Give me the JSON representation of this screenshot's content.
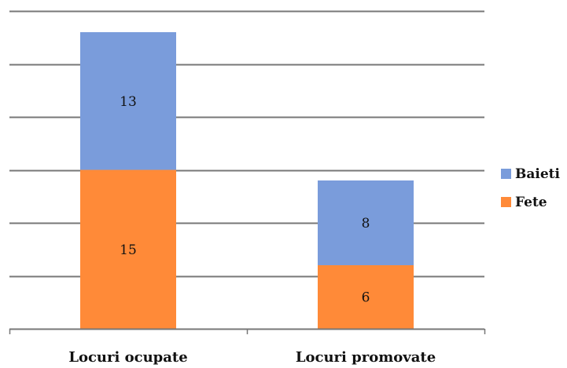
{
  "colors": {
    "baieti": "#7A9CDB",
    "fete": "#FF8A38",
    "grid": "#777777",
    "axis": "#777777"
  },
  "chart_data": {
    "type": "bar",
    "stacked": true,
    "categories": [
      "Locuri ocupate",
      "Locuri promovate"
    ],
    "series": [
      {
        "name": "Fete",
        "values": [
          15,
          6
        ]
      },
      {
        "name": "Baieti",
        "values": [
          13,
          8
        ]
      }
    ],
    "ylim": [
      0,
      30
    ],
    "grid": true,
    "legend": "right"
  }
}
